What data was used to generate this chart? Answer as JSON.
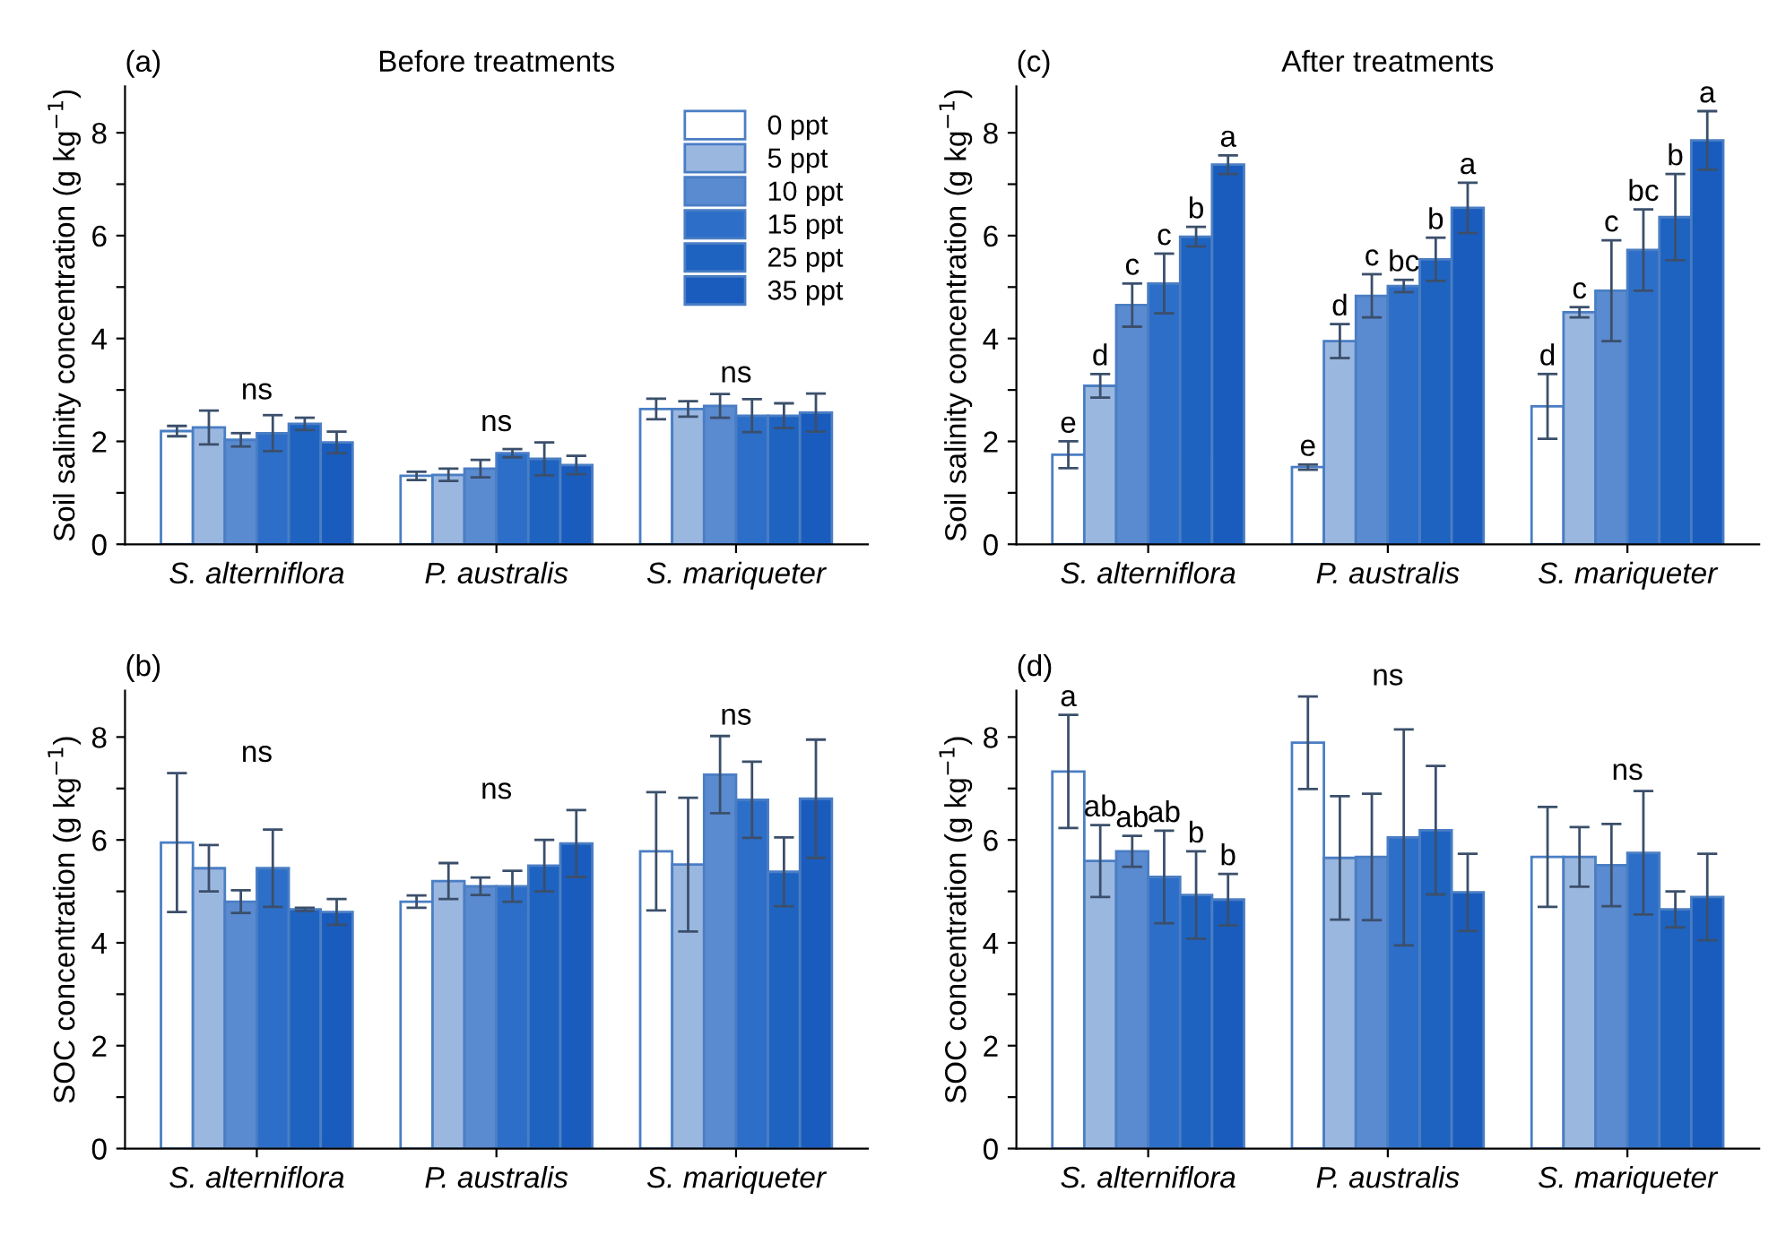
{
  "chart_data": [
    {
      "type": "bar",
      "title": "(a)",
      "subtitle": "Before treatments",
      "ylabel": "Soil salinity concentration (g kg$^{−1}$)",
      "categories": [
        "S. alterniflora",
        "P. australis",
        "S. mariqueter"
      ],
      "ylim": [
        0,
        8.9
      ],
      "yticks": [
        0,
        {
          "value": 1,
          "label": null
        },
        2,
        {
          "value": 3,
          "label": null
        },
        4,
        {
          "value": 5,
          "label": null
        },
        6,
        {
          "value": 7,
          "label": null
        },
        8
      ],
      "legend": "top right",
      "grid": false,
      "annotations": [
        "ns",
        "ns",
        "ns"
      ],
      "series": [
        {
          "name": "0 ppt",
          "color": "#ffffff",
          "values": [
            2.2,
            1.33,
            2.63
          ],
          "errors": [
            0.1,
            0.08,
            0.2
          ]
        },
        {
          "name": "5 ppt",
          "color": "#9ab7e0",
          "values": [
            2.27,
            1.35,
            2.63
          ],
          "errors": [
            0.33,
            0.12,
            0.15
          ]
        },
        {
          "name": "10 ppt",
          "color": "#5a8ad0",
          "values": [
            2.03,
            1.47,
            2.69
          ],
          "errors": [
            0.13,
            0.17,
            0.23
          ]
        },
        {
          "name": "15 ppt",
          "color": "#2d6fc8",
          "values": [
            2.16,
            1.77,
            2.5
          ],
          "errors": [
            0.35,
            0.08,
            0.32
          ]
        },
        {
          "name": "25 ppt",
          "color": "#1f63c0",
          "values": [
            2.34,
            1.66,
            2.5
          ],
          "errors": [
            0.12,
            0.32,
            0.24
          ]
        },
        {
          "name": "35 ppt",
          "color": "#1a5cbd",
          "values": [
            1.98,
            1.54,
            2.56
          ],
          "errors": [
            0.21,
            0.18,
            0.37
          ]
        }
      ]
    },
    {
      "type": "bar",
      "title": "(c)",
      "subtitle": "After treatments",
      "ylabel": "Soil salinity concentration (g kg$^{−1}$)",
      "categories": [
        "S. alterniflora",
        "P. australis",
        "S. mariqueter"
      ],
      "ylim": [
        0,
        8.9
      ],
      "yticks": [
        0,
        {
          "value": 1,
          "label": null
        },
        2,
        {
          "value": 3,
          "label": null
        },
        4,
        {
          "value": 5,
          "label": null
        },
        6,
        {
          "value": 7,
          "label": null
        },
        8
      ],
      "grid": false,
      "series": [
        {
          "color": "#ffffff",
          "values": [
            1.74,
            1.5,
            2.68
          ],
          "errors": [
            0.26,
            0.05,
            0.63
          ],
          "value_labels": [
            "e",
            "e",
            "d"
          ]
        },
        {
          "color": "#9ab7e0",
          "values": [
            3.08,
            3.95,
            4.51
          ],
          "errors": [
            0.23,
            0.33,
            0.1
          ],
          "value_labels": [
            "d",
            "d",
            "c"
          ]
        },
        {
          "color": "#5a8ad0",
          "values": [
            4.65,
            4.83,
            4.93
          ],
          "errors": [
            0.42,
            0.42,
            0.98
          ],
          "value_labels": [
            "c",
            "c",
            "c"
          ]
        },
        {
          "color": "#2d6fc8",
          "values": [
            5.07,
            5.02,
            5.72
          ],
          "errors": [
            0.58,
            0.12,
            0.79
          ],
          "value_labels": [
            "c",
            "bc",
            "bc"
          ]
        },
        {
          "color": "#1f63c0",
          "values": [
            5.98,
            5.54,
            6.36
          ],
          "errors": [
            0.19,
            0.42,
            0.84
          ],
          "value_labels": [
            "b",
            "b",
            "b"
          ]
        },
        {
          "color": "#1a5cbd",
          "values": [
            7.38,
            6.54,
            7.85
          ],
          "errors": [
            0.18,
            0.49,
            0.57
          ],
          "value_labels": [
            "a",
            "a",
            "a"
          ]
        }
      ]
    },
    {
      "type": "bar",
      "title": "(b)",
      "ylabel": "SOC concentration (g kg$^{−1}$)",
      "categories": [
        "S. alterniflora",
        "P. australis",
        "S. mariqueter"
      ],
      "ylim": [
        0,
        8.9
      ],
      "yticks": [
        0,
        {
          "value": 1,
          "label": null
        },
        2,
        {
          "value": 3,
          "label": null
        },
        4,
        {
          "value": 5,
          "label": null
        },
        6,
        {
          "value": 7,
          "label": null
        },
        8
      ],
      "grid": false,
      "annotations": [
        "ns",
        "ns",
        "ns"
      ],
      "series": [
        {
          "color": "#ffffff",
          "values": [
            5.95,
            4.8,
            5.78
          ],
          "errors": [
            1.35,
            0.12,
            1.15
          ]
        },
        {
          "color": "#9ab7e0",
          "values": [
            5.45,
            5.2,
            5.52
          ],
          "errors": [
            0.45,
            0.35,
            1.3
          ]
        },
        {
          "color": "#5a8ad0",
          "values": [
            4.8,
            5.1,
            7.27
          ],
          "errors": [
            0.22,
            0.17,
            0.75
          ]
        },
        {
          "color": "#2d6fc8",
          "values": [
            5.45,
            5.1,
            6.78
          ],
          "errors": [
            0.75,
            0.3,
            0.74
          ]
        },
        {
          "color": "#1f63c0",
          "values": [
            4.65,
            5.5,
            5.38
          ],
          "errors": [
            0.03,
            0.5,
            0.67
          ]
        },
        {
          "color": "#1a5cbd",
          "values": [
            4.6,
            5.93,
            6.8
          ],
          "errors": [
            0.25,
            0.65,
            1.15
          ]
        }
      ]
    },
    {
      "type": "bar",
      "title": "(d)",
      "ylabel": "SOC concentration (g kg$^{−1}$)",
      "categories": [
        "S. alterniflora",
        "P. australis",
        "S. mariqueter"
      ],
      "ylim": [
        0,
        8.9
      ],
      "yticks": [
        0,
        {
          "value": 1,
          "label": null
        },
        2,
        {
          "value": 3,
          "label": null
        },
        4,
        {
          "value": 5,
          "label": null
        },
        6,
        {
          "value": 7,
          "label": null
        },
        8
      ],
      "grid": false,
      "annotations": [
        "ns",
        "ns"
      ],
      "series": [
        {
          "color": "#ffffff",
          "values": [
            7.33,
            7.89,
            5.67
          ],
          "errors": [
            1.1,
            0.9,
            0.97
          ],
          "value_labels": [
            "a",
            null,
            null
          ]
        },
        {
          "color": "#9ab7e0",
          "values": [
            5.59,
            5.65,
            5.67
          ],
          "errors": [
            0.7,
            1.2,
            0.58
          ],
          "value_labels": [
            "ab",
            null,
            null
          ]
        },
        {
          "color": "#5a8ad0",
          "values": [
            5.78,
            5.67,
            5.51
          ],
          "errors": [
            0.3,
            1.23,
            0.8
          ],
          "value_labels": [
            "ab",
            null,
            null
          ]
        },
        {
          "color": "#2d6fc8",
          "values": [
            5.28,
            6.05,
            5.75
          ],
          "errors": [
            0.9,
            2.1,
            1.2
          ],
          "value_labels": [
            "ab",
            null,
            null
          ]
        },
        {
          "color": "#1f63c0",
          "values": [
            4.93,
            6.19,
            4.65
          ],
          "errors": [
            0.85,
            1.25,
            0.35
          ],
          "value_labels": [
            "b",
            null,
            null
          ]
        },
        {
          "color": "#1a5cbd",
          "values": [
            4.84,
            4.98,
            4.89
          ],
          "errors": [
            0.5,
            0.75,
            0.84
          ],
          "value_labels": [
            "b",
            null,
            null
          ]
        }
      ]
    }
  ]
}
